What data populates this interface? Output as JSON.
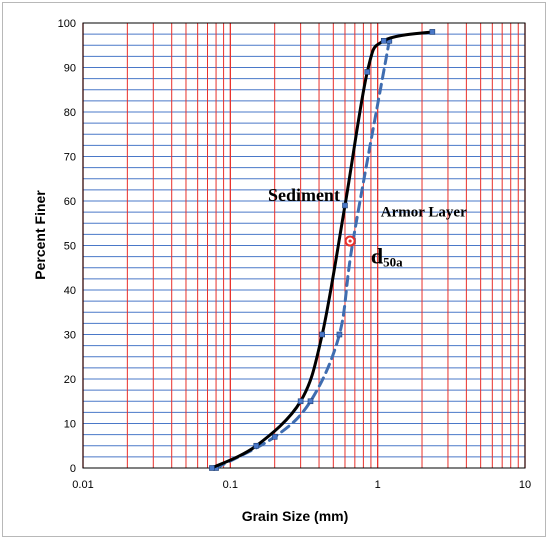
{
  "chart_data": {
    "type": "line",
    "title": "",
    "xlabel": "Grain Size (mm)",
    "ylabel": "Percent Finer",
    "xscale": "log",
    "xlim": [
      0.01,
      10
    ],
    "ylim": [
      0,
      100
    ],
    "x_ticks": [
      "0.01",
      "0.1",
      "1",
      "10"
    ],
    "y_ticks": [
      "0",
      "10",
      "20",
      "30",
      "40",
      "50",
      "60",
      "70",
      "80",
      "90",
      "100"
    ],
    "grid": true,
    "grid_colors": {
      "vertical": "#e8302b",
      "horizontal": "#4a78c8"
    },
    "series": [
      {
        "name": "Sediment",
        "style": "solid",
        "color": "#000000",
        "points": [
          [
            0.075,
            0
          ],
          [
            0.15,
            5
          ],
          [
            0.3,
            15
          ],
          [
            0.42,
            30
          ],
          [
            0.6,
            59
          ],
          [
            0.85,
            89
          ],
          [
            1.1,
            96
          ],
          [
            2.35,
            98
          ]
        ]
      },
      {
        "name": "Armor Layer",
        "style": "dashed",
        "color": "#3f6db0",
        "points": [
          [
            0.08,
            0
          ],
          [
            0.2,
            7
          ],
          [
            0.35,
            15
          ],
          [
            0.55,
            30
          ],
          [
            0.68,
            51
          ],
          [
            1.2,
            96
          ]
        ]
      }
    ],
    "annotations": [
      {
        "text": "Sediment",
        "x": 0.18,
        "y": 60
      },
      {
        "text": "Armor Layer",
        "x": 1.05,
        "y": 56.5
      },
      {
        "text": "d",
        "subscript": "50a",
        "x": 0.9,
        "y": 46
      }
    ],
    "marker": {
      "x": 0.65,
      "y": 51,
      "color": "#e8302b"
    }
  }
}
